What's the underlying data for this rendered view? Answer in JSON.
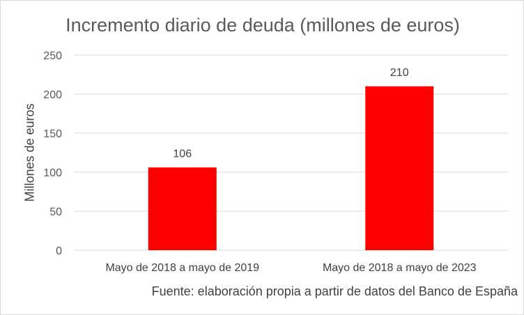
{
  "chart_data": {
    "type": "bar",
    "title": "Incremento diario de deuda (millones de euros)",
    "ylabel": "Millones de euros",
    "xlabel": "",
    "categories": [
      "Mayo de 2018 a mayo de 2019",
      "Mayo de 2018 a mayo de 2023"
    ],
    "values": [
      106,
      210
    ],
    "data_labels": [
      "106",
      "210"
    ],
    "ylim": [
      0,
      250
    ],
    "yticks": [
      "0",
      "50",
      "100",
      "150",
      "200",
      "250"
    ],
    "grid": true,
    "bar_color": "#ff0000",
    "source": "Fuente: elaboración propia a partir de datos del Banco de España"
  }
}
